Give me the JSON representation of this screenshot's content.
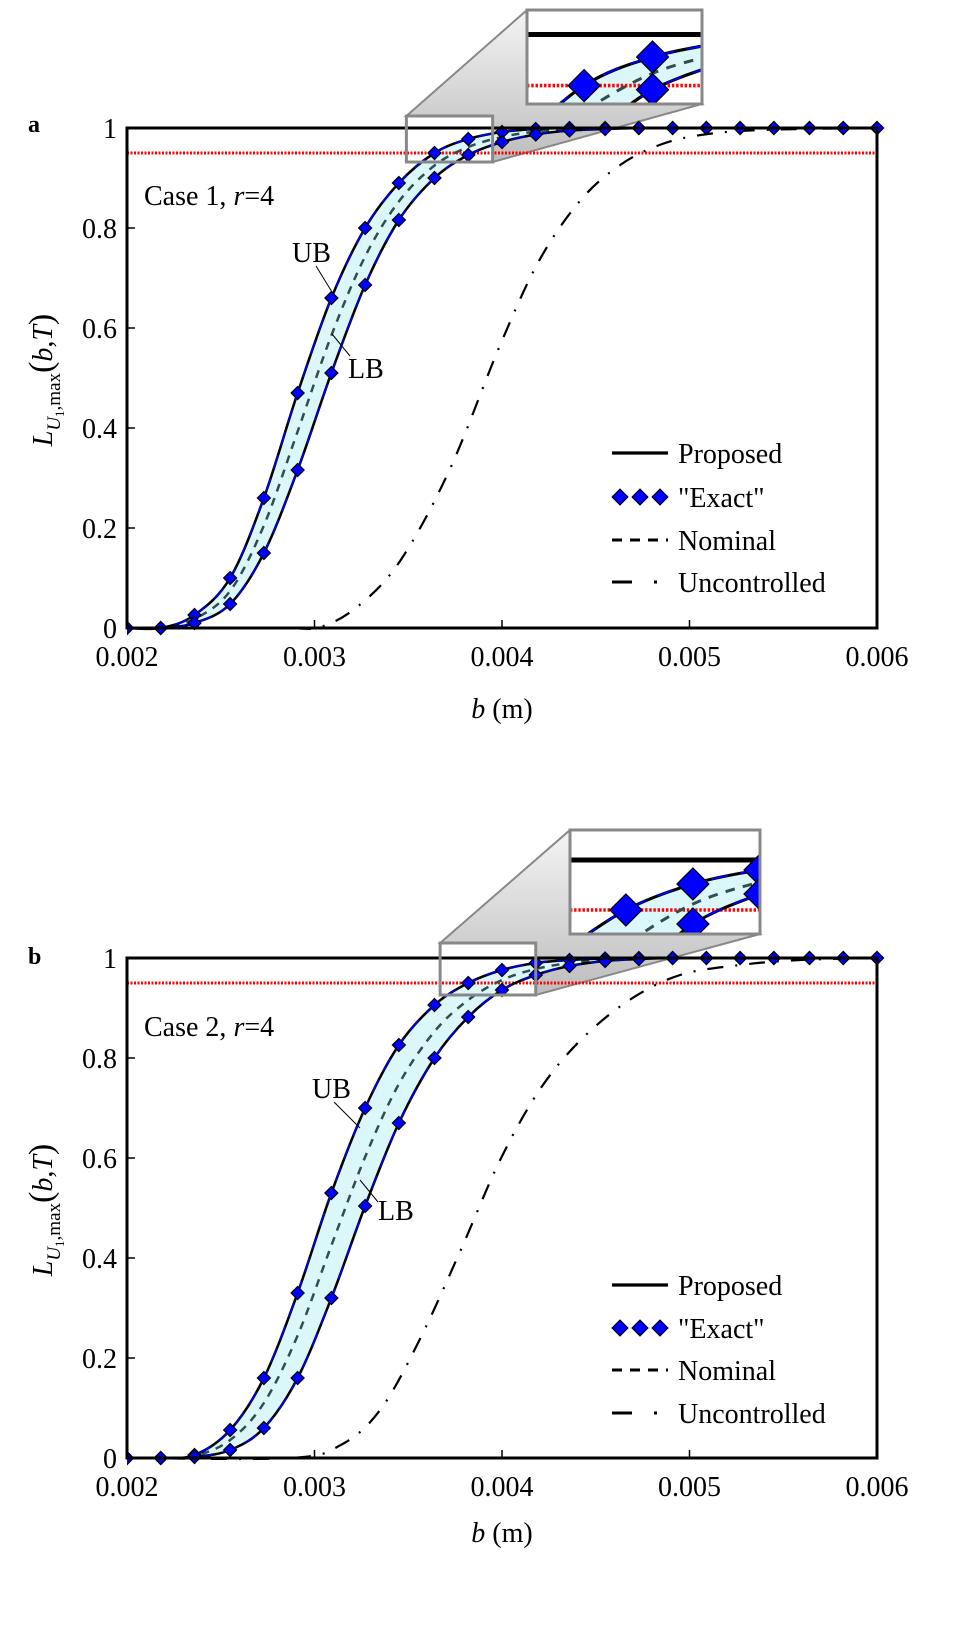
{
  "chart_data": [
    {
      "type": "line",
      "panel_label": "a",
      "annotation": {
        "case": "Case 1, ",
        "r_symbol": "r",
        "r_value": "=4"
      },
      "xlabel": {
        "var": "b",
        "unit": " (m)"
      },
      "ylabel": {
        "main": "L",
        "sub": "U",
        "subsub": "1",
        "sub_tail": ",max",
        "open": "(",
        "arg1": "b",
        "comma": ",",
        "arg2": "T",
        "close": ")"
      },
      "xlim": [
        0.002,
        0.006
      ],
      "ylim": [
        0,
        1
      ],
      "xticks": [
        "0.002",
        "0.003",
        "0.004",
        "0.005",
        "0.006"
      ],
      "yticks": [
        "0",
        "0.2",
        "0.4",
        "0.6",
        "0.8",
        "1"
      ],
      "threshold": 0.95,
      "threshold_color": "#ff0000",
      "band_fill": "#dcf7fa",
      "curve_labels": {
        "ub": "UB",
        "lb": "LB"
      },
      "legend": {
        "placement": "bottom-right",
        "items": [
          "Proposed",
          "\"Exact\"",
          "Nominal",
          "Uncontrolled"
        ]
      },
      "x": [
        0.002,
        0.00218,
        0.00236,
        0.00255,
        0.00273,
        0.00291,
        0.00309,
        0.00327,
        0.00345,
        0.00364,
        0.00382,
        0.004,
        0.00418,
        0.00436,
        0.00455,
        0.00473,
        0.00491,
        0.00509,
        0.00527,
        0.00545,
        0.00564,
        0.00582,
        0.006
      ],
      "series": [
        {
          "name": "Proposed UB",
          "values": [
            0,
            0,
            0.026,
            0.1,
            0.26,
            0.47,
            0.66,
            0.8,
            0.89,
            0.95,
            0.978,
            0.992,
            0.998,
            1,
            1,
            1,
            1,
            1,
            1,
            1,
            1,
            1,
            1
          ]
        },
        {
          "name": "Proposed LB",
          "values": [
            0,
            0,
            0.01,
            0.048,
            0.15,
            0.316,
            0.51,
            0.686,
            0.816,
            0.9,
            0.946,
            0.972,
            0.987,
            0.995,
            0.998,
            1,
            1,
            1,
            1,
            1,
            1,
            1,
            1
          ]
        },
        {
          "name": "Nominal",
          "values": [
            0,
            0,
            0.018,
            0.074,
            0.205,
            0.393,
            0.585,
            0.743,
            0.853,
            0.925,
            0.962,
            0.982,
            0.993,
            0.998,
            0.999,
            1,
            1,
            1,
            1,
            1,
            1,
            1,
            1
          ]
        },
        {
          "name": "Uncontrolled",
          "x": [
            0.002,
            0.0028,
            0.00303,
            0.00324,
            0.00346,
            0.00372,
            0.00399,
            0.0042,
            0.00442,
            0.00463,
            0.00484,
            0.00506,
            0.00538,
            0.006
          ],
          "values": [
            0,
            0,
            0.002,
            0.046,
            0.136,
            0.316,
            0.566,
            0.736,
            0.856,
            0.926,
            0.966,
            0.986,
            0.996,
            1
          ]
        }
      ],
      "zoom_region": {
        "x": [
          0.00349,
          0.00395
        ],
        "y": [
          0.932,
          1.024
        ]
      }
    },
    {
      "type": "line",
      "panel_label": "b",
      "annotation": {
        "case": "Case 2, ",
        "r_symbol": "r",
        "r_value": "=4"
      },
      "xlabel": {
        "var": "b",
        "unit": " (m)"
      },
      "ylabel": {
        "main": "L",
        "sub": "U",
        "subsub": "1",
        "sub_tail": ",max",
        "open": "(",
        "arg1": "b",
        "comma": ",",
        "arg2": "T",
        "close": ")"
      },
      "xlim": [
        0.002,
        0.006
      ],
      "ylim": [
        0,
        1
      ],
      "xticks": [
        "0.002",
        "0.003",
        "0.004",
        "0.005",
        "0.006"
      ],
      "yticks": [
        "0",
        "0.2",
        "0.4",
        "0.6",
        "0.8",
        "1"
      ],
      "threshold": 0.95,
      "threshold_color": "#ff0000",
      "band_fill": "#dcf7fa",
      "curve_labels": {
        "ub": "UB",
        "lb": "LB"
      },
      "legend": {
        "placement": "bottom-right",
        "items": [
          "Proposed",
          "\"Exact\"",
          "Nominal",
          "Uncontrolled"
        ]
      },
      "x": [
        0.002,
        0.00218,
        0.00236,
        0.00255,
        0.00273,
        0.00291,
        0.00309,
        0.00327,
        0.00345,
        0.00364,
        0.00382,
        0.004,
        0.00418,
        0.00436,
        0.00455,
        0.00473,
        0.00491,
        0.00509,
        0.00527,
        0.00545,
        0.00564,
        0.00582,
        0.006
      ],
      "series": [
        {
          "name": "Proposed UB",
          "values": [
            0,
            0,
            0.006,
            0.056,
            0.16,
            0.33,
            0.53,
            0.7,
            0.826,
            0.906,
            0.95,
            0.976,
            0.99,
            0.996,
            0.999,
            1,
            1,
            1,
            1,
            1,
            1,
            1,
            1
          ]
        },
        {
          "name": "Proposed LB",
          "values": [
            0,
            0,
            0.002,
            0.016,
            0.06,
            0.16,
            0.32,
            0.504,
            0.67,
            0.8,
            0.882,
            0.936,
            0.966,
            0.984,
            0.994,
            0.998,
            1,
            1,
            1,
            1,
            1,
            1,
            1
          ]
        },
        {
          "name": "Nominal",
          "values": [
            0,
            0,
            0.004,
            0.036,
            0.11,
            0.245,
            0.425,
            0.602,
            0.748,
            0.853,
            0.916,
            0.956,
            0.978,
            0.99,
            0.997,
            0.999,
            1,
            1,
            1,
            1,
            1,
            1,
            1
          ]
        },
        {
          "name": "Uncontrolled",
          "x": [
            0.002,
            0.00287,
            0.00314,
            0.00335,
            0.00356,
            0.00378,
            0.00399,
            0.0042,
            0.00442,
            0.00468,
            0.00495,
            0.00527,
            0.00559,
            0.006
          ],
          "values": [
            0,
            0,
            0.026,
            0.096,
            0.236,
            0.416,
            0.596,
            0.736,
            0.836,
            0.916,
            0.966,
            0.986,
            0.996,
            1
          ]
        }
      ],
      "zoom_region": {
        "x": [
          0.00367,
          0.00418
        ],
        "y": [
          0.926,
          1.03
        ]
      }
    }
  ]
}
